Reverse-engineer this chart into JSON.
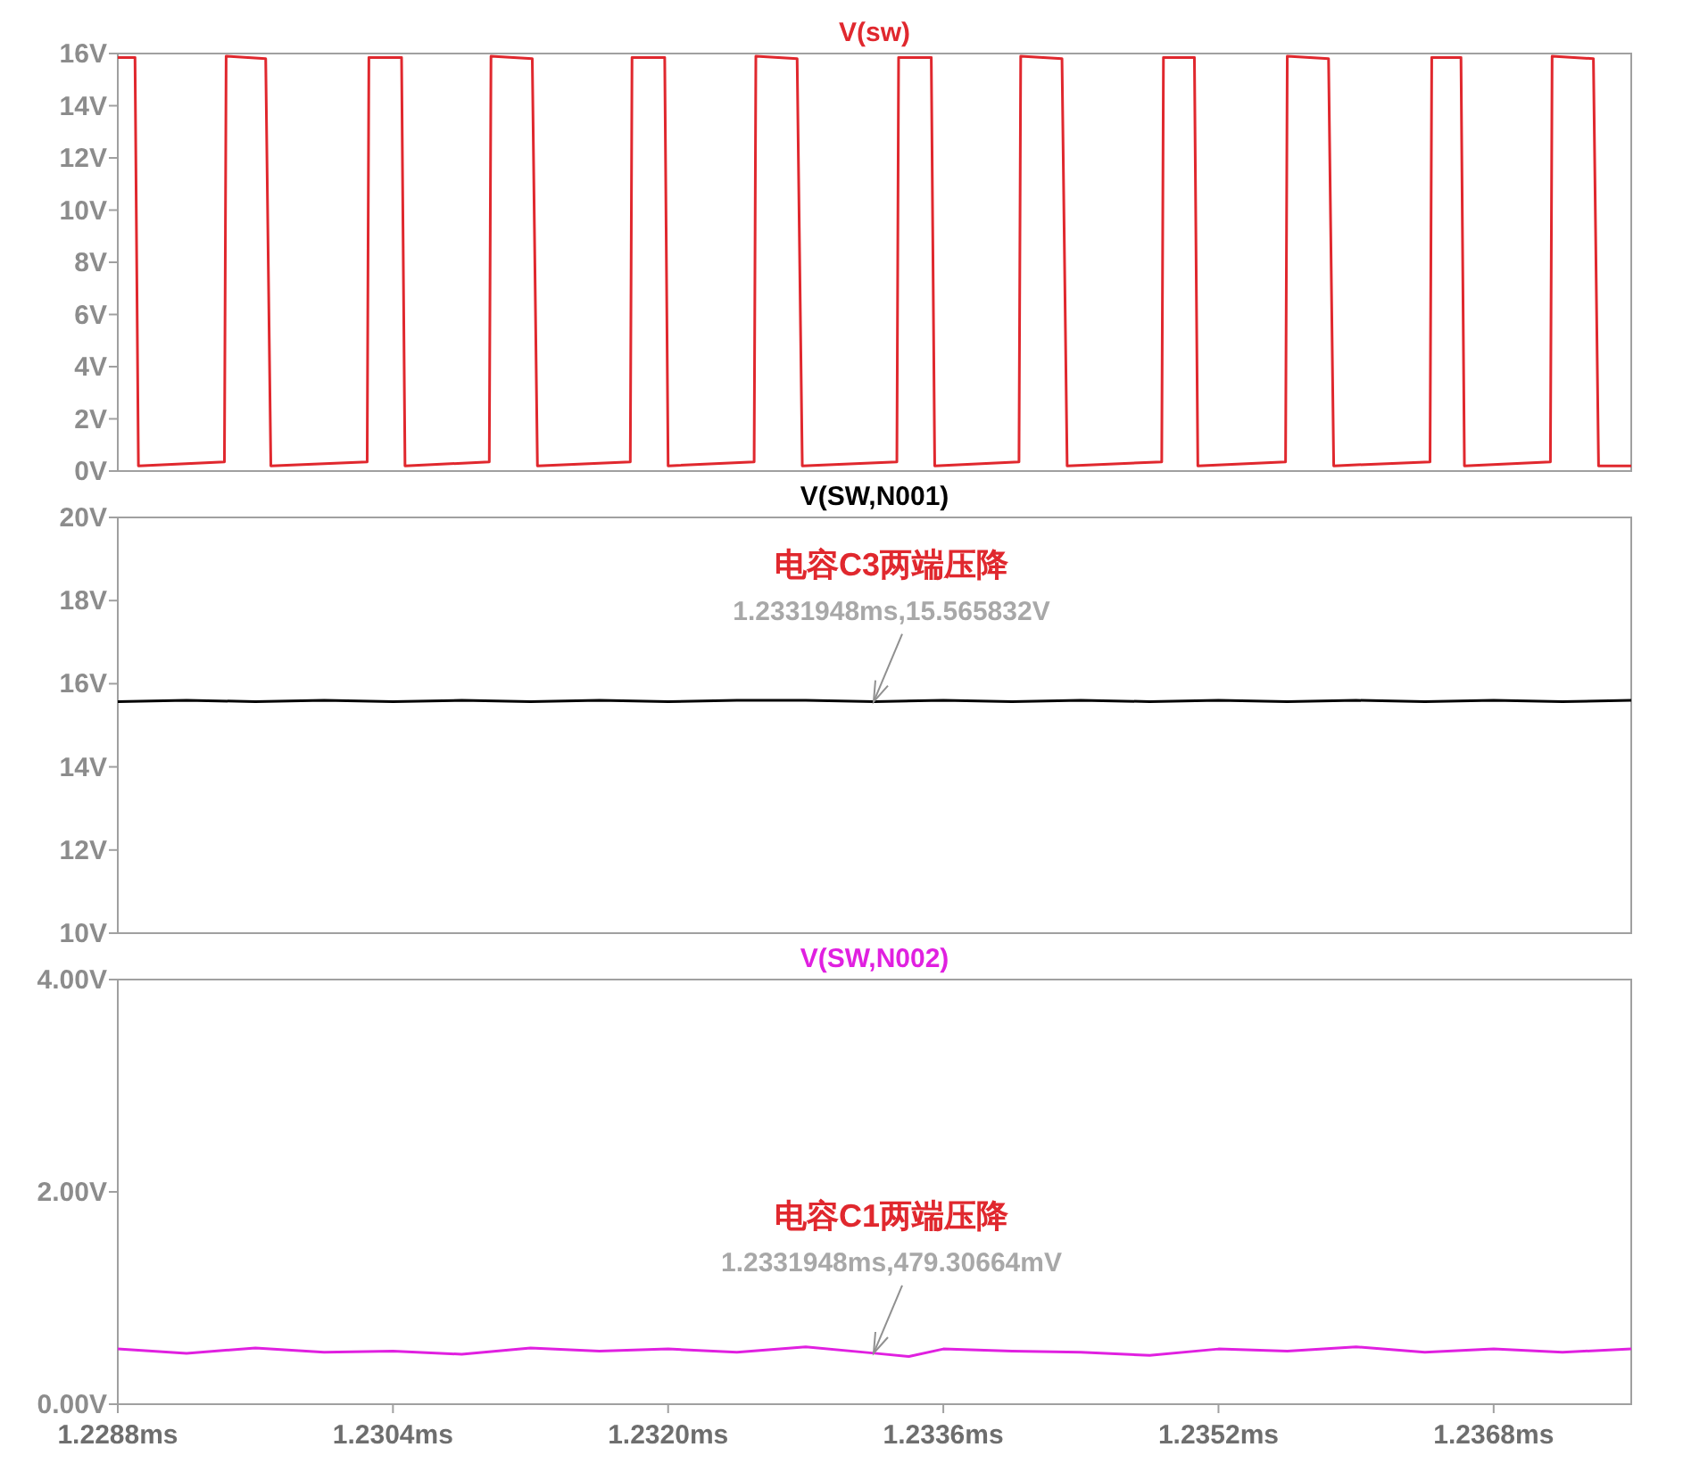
{
  "chart_data": [
    {
      "type": "line",
      "title": "V(sw)",
      "xlim": [
        1.2288,
        1.2376
      ],
      "ylim": [
        0,
        16
      ],
      "tick_labels": "y",
      "yticks": [
        {
          "value": 0,
          "label": "0V"
        },
        {
          "value": 2,
          "label": "2V"
        },
        {
          "value": 4,
          "label": "4V"
        },
        {
          "value": 6,
          "label": "6V"
        },
        {
          "value": 8,
          "label": "8V"
        },
        {
          "value": 10,
          "label": "10V"
        },
        {
          "value": 12,
          "label": "12V"
        },
        {
          "value": 14,
          "label": "14V"
        },
        {
          "value": 16,
          "label": "16V"
        }
      ],
      "series": [
        {
          "color": "#e0282e",
          "x": [
            1.2288,
            1.2289,
            1.22892,
            1.22942,
            1.22943,
            1.22966,
            1.22969,
            1.23025,
            1.23026,
            1.23045,
            1.23047,
            1.23096,
            1.23097,
            1.23121,
            1.23124,
            1.23178,
            1.23179,
            1.23198,
            1.232,
            1.2325,
            1.23251,
            1.23275,
            1.23278,
            1.23333,
            1.23334,
            1.23353,
            1.23355,
            1.23404,
            1.23405,
            1.23429,
            1.23432,
            1.23487,
            1.23488,
            1.23506,
            1.23508,
            1.23559,
            1.2356,
            1.23584,
            1.23587,
            1.23643,
            1.23644,
            1.23661,
            1.23663,
            1.23713,
            1.23714,
            1.23738,
            1.23741,
            1.2376
          ],
          "values": [
            15.85,
            15.85,
            0.2,
            0.35,
            15.9,
            15.8,
            0.2,
            0.35,
            15.85,
            15.85,
            0.2,
            0.35,
            15.9,
            15.8,
            0.2,
            0.35,
            15.85,
            15.85,
            0.2,
            0.35,
            15.9,
            15.8,
            0.2,
            0.35,
            15.85,
            15.85,
            0.2,
            0.35,
            15.9,
            15.8,
            0.2,
            0.35,
            15.85,
            15.85,
            0.2,
            0.35,
            15.9,
            15.8,
            0.2,
            0.35,
            15.85,
            15.85,
            0.2,
            0.35,
            15.9,
            15.8,
            0.2,
            0.2
          ]
        }
      ]
    },
    {
      "type": "line",
      "title": "V(SW,N001)",
      "xlim": [
        1.2288,
        1.2376
      ],
      "ylim": [
        10,
        20
      ],
      "tick_labels": "y",
      "yticks": [
        {
          "value": 10,
          "label": "10V"
        },
        {
          "value": 12,
          "label": "12V"
        },
        {
          "value": 14,
          "label": "14V"
        },
        {
          "value": 16,
          "label": "16V"
        },
        {
          "value": 18,
          "label": "18V"
        },
        {
          "value": 20,
          "label": "20V"
        }
      ],
      "annotations": [
        "电容C3两端压降",
        {
          "text": "1.2331948ms,15.565832V",
          "x": 1.2331948,
          "y": 15.565832
        }
      ],
      "series": [
        {
          "color": "#000000",
          "x": [
            1.2288,
            1.2292,
            1.2296,
            1.23,
            1.2304,
            1.2308,
            1.2312,
            1.2316,
            1.232,
            1.2324,
            1.2328,
            1.2332,
            1.2336,
            1.234,
            1.2344,
            1.2348,
            1.2352,
            1.2356,
            1.236,
            1.2364,
            1.2368,
            1.2372,
            1.2376
          ],
          "values": [
            15.57,
            15.6,
            15.57,
            15.6,
            15.57,
            15.6,
            15.57,
            15.6,
            15.57,
            15.6,
            15.6,
            15.57,
            15.6,
            15.57,
            15.6,
            15.57,
            15.6,
            15.57,
            15.6,
            15.57,
            15.6,
            15.57,
            15.6
          ]
        }
      ]
    },
    {
      "type": "line",
      "title": "V(SW,N002)",
      "xlim": [
        1.2288,
        1.2376
      ],
      "ylim": [
        0,
        4
      ],
      "xticks": [
        {
          "value": 1.2288,
          "label": "1.2288ms"
        },
        {
          "value": 1.2304,
          "label": "1.2304ms"
        },
        {
          "value": 1.232,
          "label": "1.2320ms"
        },
        {
          "value": 1.2336,
          "label": "1.2336ms"
        },
        {
          "value": 1.2352,
          "label": "1.2352ms"
        },
        {
          "value": 1.2368,
          "label": "1.2368ms"
        }
      ],
      "yticks": [
        {
          "value": 0,
          "label": "0.00V"
        },
        {
          "value": 2,
          "label": "2.00V"
        },
        {
          "value": 4,
          "label": "4.00V"
        }
      ],
      "annotations": [
        "电容C1两端压降",
        {
          "text": "1.2331948ms,479.30664mV",
          "x": 1.2331948,
          "y": 0.47930664
        }
      ],
      "series": [
        {
          "color": "#e020e0",
          "x": [
            1.2288,
            1.2292,
            1.2296,
            1.23,
            1.2304,
            1.2308,
            1.2312,
            1.2316,
            1.232,
            1.2324,
            1.2328,
            1.2332,
            1.2334,
            1.2336,
            1.234,
            1.2344,
            1.2348,
            1.2352,
            1.2356,
            1.236,
            1.2364,
            1.2368,
            1.2372,
            1.2376
          ],
          "values": [
            0.52,
            0.48,
            0.53,
            0.49,
            0.5,
            0.47,
            0.53,
            0.5,
            0.52,
            0.49,
            0.54,
            0.48,
            0.45,
            0.52,
            0.5,
            0.49,
            0.46,
            0.52,
            0.5,
            0.54,
            0.49,
            0.52,
            0.49,
            0.52
          ]
        }
      ]
    }
  ]
}
